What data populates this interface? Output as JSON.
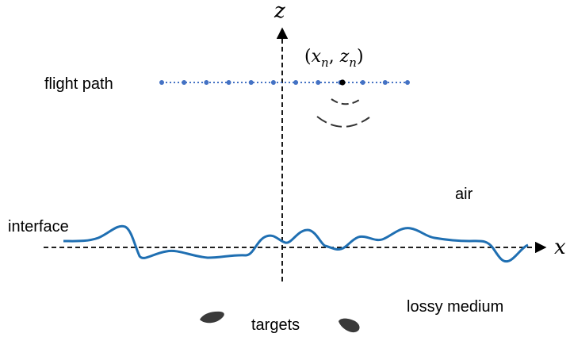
{
  "labels": {
    "flight_path": "flight path",
    "air": "air",
    "interface": "interface",
    "lossy_medium": "lossy medium",
    "targets": "targets"
  },
  "axes": {
    "x": "x",
    "z": "z"
  },
  "position": {
    "x": "x",
    "x_sub": "n",
    "z": "z",
    "z_sub": "n"
  },
  "colors": {
    "flight_path": "#4472c4",
    "interface": "#1f6fb2",
    "target": "#3a3a3a",
    "axis": "#000000"
  }
}
